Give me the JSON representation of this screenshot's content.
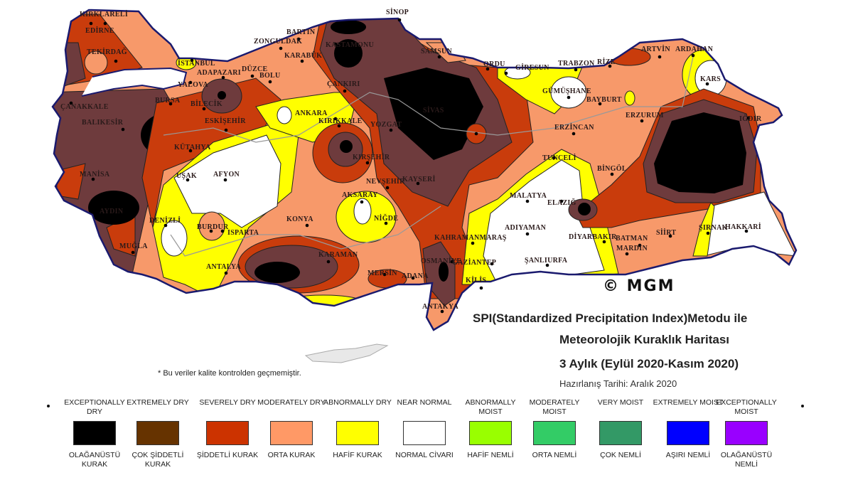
{
  "title": {
    "line1": "SPI(Standardized Precipitation Index)Metodu ile",
    "line2": "Meteorolojik Kuraklık Haritası",
    "line3": "3 Aylık (Eylül 2020-Kasım 2020)",
    "prepared": "Hazırlanış Tarihi: Aralık 2020"
  },
  "copyright": "© MGM",
  "note": "* Bu veriler kalite kontrolden geçmemiştir.",
  "colors": {
    "exceptionally_dry": "#000000",
    "extremely_dry": "#6e3b3d",
    "severely_dry": "#c93c0c",
    "moderately_dry": "#f7996a",
    "abnormally_dry": "#ffff00",
    "near_normal": "#ffffff"
  },
  "legend": [
    {
      "en": "EXCEPTIONALLY DRY",
      "tr": "OLAĞANÜSTÜ KURAK",
      "color": "#000000"
    },
    {
      "en": "EXTREMELY DRY",
      "tr": "ÇOK ŞİDDETLİ KURAK",
      "color": "#663300"
    },
    {
      "en": "SEVERELY DRY",
      "tr": "ŞİDDETLİ KURAK",
      "color": "#cc3300"
    },
    {
      "en": "MODERATELY DRY",
      "tr": "ORTA KURAK",
      "color": "#ff9966"
    },
    {
      "en": "ABNORMALLY DRY",
      "tr": "HAFİF KURAK",
      "color": "#ffff00"
    },
    {
      "en": "NEAR NORMAL",
      "tr": "NORMAL CİVARI",
      "color": "#ffffff"
    },
    {
      "en": "ABNORMALLY MOIST",
      "tr": "HAFİF NEMLİ",
      "color": "#99ff00"
    },
    {
      "en": "MODERATELY MOIST",
      "tr": "ORTA NEMLİ",
      "color": "#33cc66"
    },
    {
      "en": "VERY MOIST",
      "tr": "ÇOK NEMLİ",
      "color": "#339966"
    },
    {
      "en": "EXTREMELY MOIST",
      "tr": "AŞIRI NEMLİ",
      "color": "#0000ff"
    },
    {
      "en": "EXCEPTIONALLY MOIST",
      "tr": "OLAĞANÜSTÜ NEMLİ",
      "color": "#9900ff"
    }
  ],
  "cities": [
    "KIRKLARELİ",
    "EDİRNE",
    "TEKİRDAĞ",
    "İSTANBUL",
    "BARTIN",
    "ZONGULDAK",
    "KARABÜK",
    "KASTAMONU",
    "SİNOP",
    "SAMSUN",
    "ORDU",
    "GİRESUN",
    "TRABZON",
    "RİZE",
    "ARTVİN",
    "ARDAHAN",
    "KARS",
    "ADAPAZARI",
    "DÜZCE",
    "BOLU",
    "YALOVA",
    "BURSA",
    "BİLECİK",
    "ÇANAKKALE",
    "BALIKESİR",
    "ESKİŞEHİR",
    "ANKARA",
    "ÇANKIRI",
    "KIRIKKALE",
    "YOZGAT",
    "SİVAS",
    "GÜMÜŞHANE",
    "BAYBURT",
    "ERZURUM",
    "ERZİNCAN",
    "IĞDIR",
    "KÜTAHYA",
    "KIRŞEHİR",
    "MANİSA",
    "UŞAK",
    "AFYON",
    "NEVŞEHİR",
    "KAYSERİ",
    "TUNCELİ",
    "BİNGÖL",
    "AKSARAY",
    "MALATYA",
    "ELAZIĞ",
    "AYDIN",
    "DENİZLİ",
    "BURDUR",
    "ISPARTA",
    "KONYA",
    "NİĞDE",
    "DİYARBAKIR",
    "BATMAN",
    "SİİRT",
    "ŞIRNAK",
    "HAKKARİ",
    "KAHRAMANMARAŞ",
    "ADIYAMAN",
    "MUĞLA",
    "MARDİN",
    "ANTALYA",
    "KARAMAN",
    "OSMANİYE",
    "GAZİANTEP",
    "ŞANLIURFA",
    "MERSİN",
    "ADANA",
    "KİLİS",
    "ANTAKYA"
  ]
}
